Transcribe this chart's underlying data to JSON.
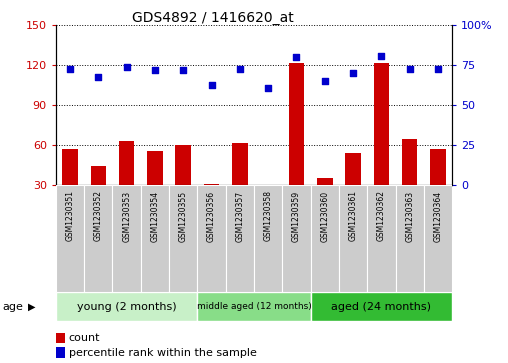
{
  "title": "GDS4892 / 1416620_at",
  "samples": [
    "GSM1230351",
    "GSM1230352",
    "GSM1230353",
    "GSM1230354",
    "GSM1230355",
    "GSM1230356",
    "GSM1230357",
    "GSM1230358",
    "GSM1230359",
    "GSM1230360",
    "GSM1230361",
    "GSM1230362",
    "GSM1230363",
    "GSM1230364"
  ],
  "counts": [
    57,
    44,
    63,
    56,
    60,
    31,
    62,
    30,
    122,
    35,
    54,
    122,
    65,
    57
  ],
  "percentiles": [
    73,
    68,
    74,
    72,
    72,
    63,
    73,
    61,
    80,
    65,
    70,
    81,
    73,
    73
  ],
  "groups": [
    {
      "label": "young (2 months)",
      "start": 0,
      "end": 5,
      "color": "#c8f0c8"
    },
    {
      "label": "middle aged (12 months)",
      "start": 5,
      "end": 9,
      "color": "#88dd88"
    },
    {
      "label": "aged (24 months)",
      "start": 9,
      "end": 14,
      "color": "#33bb33"
    }
  ],
  "ylim_left": [
    30,
    150
  ],
  "ylim_right": [
    0,
    100
  ],
  "yticks_left": [
    30,
    60,
    90,
    120,
    150
  ],
  "yticks_right": [
    0,
    25,
    50,
    75,
    100
  ],
  "bar_color": "#cc0000",
  "dot_color": "#0000cc",
  "grid_color": "#000000",
  "sample_col_color": "#cccccc",
  "plot_bg": "#ffffff",
  "legend_items": [
    "count",
    "percentile rank within the sample"
  ],
  "age_label": "age"
}
